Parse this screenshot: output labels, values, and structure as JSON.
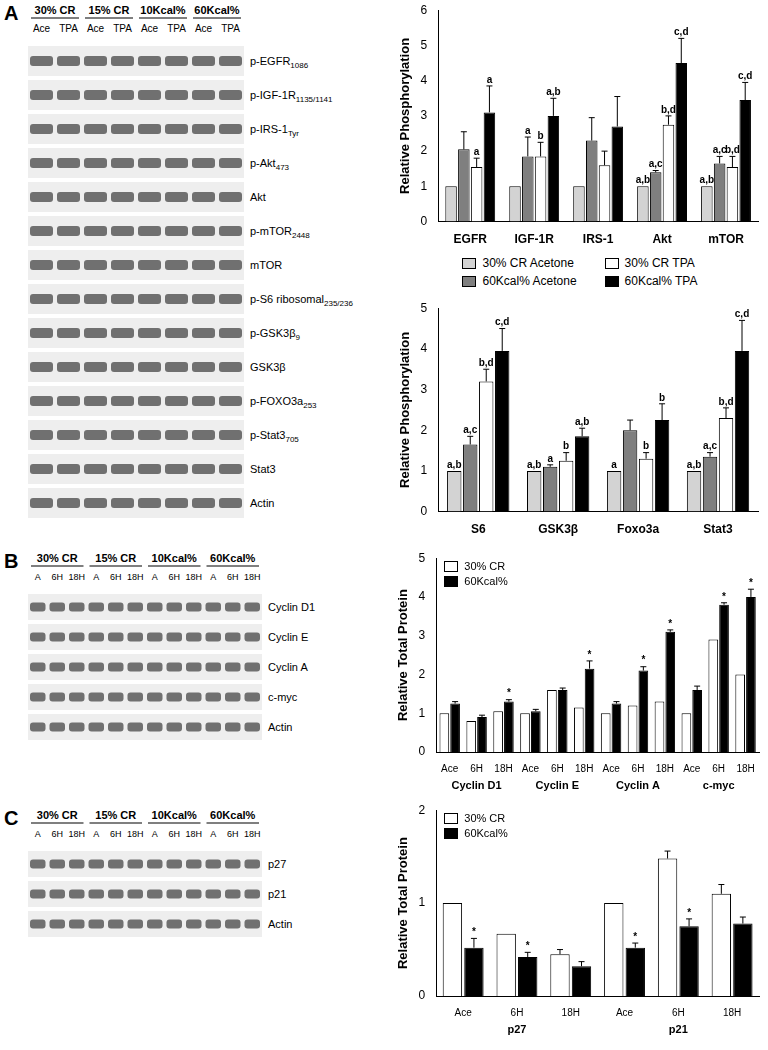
{
  "panel_labels": [
    "A",
    "B",
    "C"
  ],
  "blots": [
    {
      "groups": [
        "30% CR",
        "15% CR",
        "10Kcal%",
        "60Kcal%"
      ],
      "lanes": [
        "Ace",
        "TPA"
      ],
      "rows": [
        {
          "name": "p-EGFR",
          "sub": "1086"
        },
        {
          "name": "p-IGF-1R",
          "sub": "1135/1141"
        },
        {
          "name": "p-IRS-1",
          "sub": "Tyr"
        },
        {
          "name": "p-Akt",
          "sub": "473"
        },
        {
          "name": "Akt",
          "sub": null
        },
        {
          "name": "p-mTOR",
          "sub": "2448"
        },
        {
          "name": "mTOR",
          "sub": null
        },
        {
          "name": "p-S6 ribosomal",
          "sub": "235/236"
        },
        {
          "name": "p-GSK3β",
          "sub": "9"
        },
        {
          "name": "GSK3β",
          "sub": null
        },
        {
          "name": "p-FOXO3a",
          "sub": "253"
        },
        {
          "name": "p-Stat3",
          "sub": "705"
        },
        {
          "name": "Stat3",
          "sub": null
        },
        {
          "name": "Actin",
          "sub": null
        }
      ]
    },
    {
      "groups": [
        "30% CR",
        "15% CR",
        "10Kcal%",
        "60Kcal%"
      ],
      "lanes": [
        "A",
        "6H",
        "18H"
      ],
      "rows": [
        {
          "name": "Cyclin D1",
          "sub": null
        },
        {
          "name": "Cyclin E",
          "sub": null
        },
        {
          "name": "Cyclin A",
          "sub": null
        },
        {
          "name": "c-myc",
          "sub": null
        },
        {
          "name": "Actin",
          "sub": null
        }
      ]
    },
    {
      "groups": [
        "30% CR",
        "15% CR",
        "10Kcal%",
        "60Kcal%"
      ],
      "lanes": [
        "A",
        "6H",
        "18H"
      ],
      "rows": [
        {
          "name": "p27",
          "sub": null
        },
        {
          "name": "p21",
          "sub": null
        },
        {
          "name": "Actin",
          "sub": null
        }
      ]
    }
  ],
  "chart_data": [
    {
      "type": "bar",
      "ylabel": "Relative Phosphorylation",
      "categories": [
        "EGFR",
        "IGF-1R",
        "IRS-1",
        "Akt",
        "mTOR"
      ],
      "ylim": [
        0,
        6
      ],
      "yticks": [
        0,
        1,
        2,
        3,
        4,
        5,
        6
      ],
      "grid": false,
      "series": [
        {
          "name": "30% CR Acetone",
          "color": "#d3d3d3",
          "values": [
            1,
            1,
            1,
            1,
            1
          ],
          "errors": [
            null,
            null,
            null,
            null,
            null
          ],
          "annotations": [
            null,
            null,
            null,
            "a,b",
            "a,b"
          ]
        },
        {
          "name": "60Kcal% Acetone",
          "color": "#7f7f7f",
          "values": [
            2.05,
            1.85,
            2.3,
            1.4,
            1.65
          ],
          "errors": [
            0.5,
            0.55,
            0.65,
            0.05,
            0.2
          ],
          "annotations": [
            null,
            "a",
            null,
            "a,c",
            "a,c"
          ]
        },
        {
          "name": "30% CR TPA",
          "color": "#ffffff",
          "values": [
            1.55,
            1.85,
            1.6,
            2.75,
            1.55
          ],
          "errors": [
            0.25,
            0.4,
            0.4,
            0.25,
            0.3
          ],
          "annotations": [
            "a",
            "b",
            null,
            "b,d",
            "b,d"
          ]
        },
        {
          "name": "60Kcal% TPA",
          "color": "#000000",
          "values": [
            3.1,
            3.0,
            2.7,
            4.5,
            3.45
          ],
          "errors": [
            0.75,
            0.5,
            0.85,
            0.7,
            0.5
          ],
          "annotations": [
            "a",
            "a,b",
            null,
            "c,d",
            "c,d"
          ]
        }
      ]
    },
    {
      "type": "bar",
      "ylabel": "Relative Phosphorylation",
      "categories": [
        "S6",
        "GSK3β",
        "Foxo3a",
        "Stat3"
      ],
      "ylim": [
        0,
        5
      ],
      "yticks": [
        0,
        1,
        2,
        3,
        4,
        5
      ],
      "grid": false,
      "legend": "top",
      "series": [
        {
          "name": "30% CR Acetone",
          "color": "#d3d3d3",
          "values": [
            1,
            1,
            1,
            1
          ],
          "errors": [
            null,
            null,
            null,
            null
          ],
          "annotations": [
            "a,b",
            "a,b",
            "a",
            "a,b"
          ]
        },
        {
          "name": "60Kcal% Acetone",
          "color": "#7f7f7f",
          "values": [
            1.65,
            1.1,
            2.0,
            1.35
          ],
          "errors": [
            0.2,
            0.05,
            0.25,
            0.1
          ],
          "annotations": [
            "a,c",
            "a",
            null,
            "a,c"
          ]
        },
        {
          "name": "30% CR TPA",
          "color": "#ffffff",
          "values": [
            3.2,
            1.25,
            1.3,
            2.3
          ],
          "errors": [
            0.3,
            0.2,
            0.15,
            0.25
          ],
          "annotations": [
            "b,d",
            "b",
            "b",
            "b,d"
          ]
        },
        {
          "name": "60Kcal% TPA",
          "color": "#000000",
          "values": [
            3.95,
            1.85,
            2.25,
            3.95
          ],
          "errors": [
            0.55,
            0.2,
            0.4,
            0.75
          ],
          "annotations": [
            "c,d",
            "a,b",
            "b",
            "c,d"
          ]
        }
      ]
    },
    {
      "type": "bar",
      "ylabel": "Relative Total Protein",
      "groups": [
        "Cyclin D1",
        "Cyclin E",
        "Cyclin A",
        "c-myc"
      ],
      "categories": [
        "Ace",
        "6H",
        "18H",
        "Ace",
        "6H",
        "18H",
        "Ace",
        "6H",
        "18H",
        "Ace",
        "6H",
        "18H"
      ],
      "ylim": [
        0,
        5
      ],
      "yticks": [
        0,
        1,
        2,
        3,
        4,
        5
      ],
      "grid": false,
      "legend": "top-left",
      "series": [
        {
          "name": "30% CR",
          "color": "#ffffff",
          "values": [
            1.0,
            0.8,
            1.05,
            1.0,
            1.6,
            1.15,
            1.0,
            1.2,
            1.3,
            1.0,
            2.9,
            2.0
          ],
          "errors": [
            null,
            null,
            null,
            null,
            null,
            null,
            null,
            null,
            null,
            null,
            null,
            null
          ],
          "annotations": [
            null,
            null,
            null,
            null,
            null,
            null,
            null,
            null,
            null,
            null,
            null,
            null
          ]
        },
        {
          "name": "60Kcal%",
          "color": "#000000",
          "values": [
            1.25,
            0.9,
            1.3,
            1.05,
            1.6,
            2.15,
            1.25,
            2.1,
            3.1,
            1.6,
            3.8,
            4.0
          ],
          "errors": [
            0.05,
            0.05,
            0.05,
            0.05,
            0.05,
            0.2,
            0.05,
            0.1,
            0.05,
            0.1,
            0.05,
            0.2
          ],
          "annotations": [
            null,
            null,
            "*",
            null,
            null,
            "*",
            null,
            "*",
            "*",
            null,
            "*",
            "*"
          ]
        }
      ]
    },
    {
      "type": "bar",
      "ylabel": "Relative Total Protein",
      "groups": [
        "p27",
        "p21"
      ],
      "categories": [
        "Ace",
        "6H",
        "18H",
        "Ace",
        "6H",
        "18H"
      ],
      "ylim": [
        0,
        2
      ],
      "yticks": [
        0,
        1,
        2
      ],
      "grid": false,
      "legend": "top-left",
      "series": [
        {
          "name": "30% CR",
          "color": "#ffffff",
          "values": [
            1.0,
            0.67,
            0.45,
            1.0,
            1.48,
            1.1
          ],
          "errors": [
            null,
            null,
            0.05,
            null,
            0.08,
            0.1
          ],
          "annotations": [
            null,
            null,
            null,
            null,
            null,
            null
          ]
        },
        {
          "name": "60Kcal%",
          "color": "#000000",
          "values": [
            0.52,
            0.42,
            0.32,
            0.52,
            0.75,
            0.78
          ],
          "errors": [
            0.1,
            0.05,
            0.05,
            0.05,
            0.08,
            0.07
          ],
          "annotations": [
            "*",
            "*",
            null,
            "*",
            "*",
            null
          ]
        }
      ]
    }
  ]
}
